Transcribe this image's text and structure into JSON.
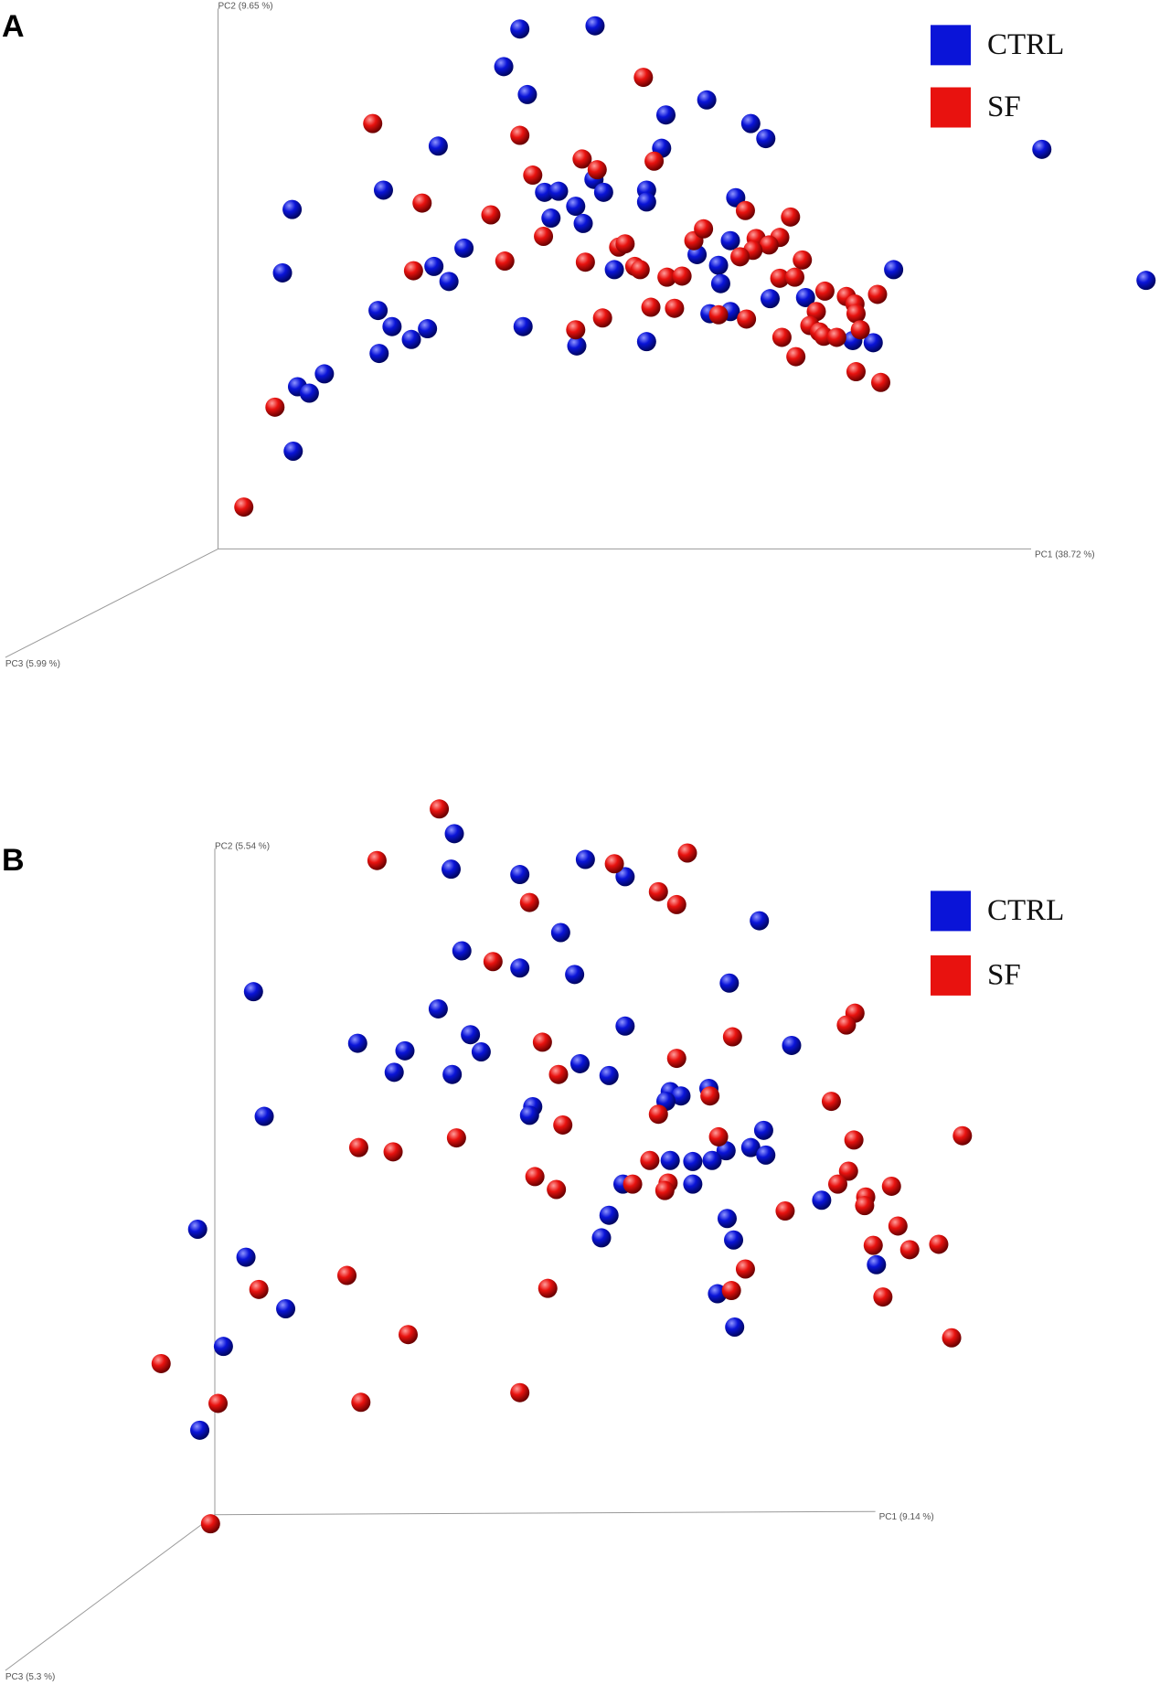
{
  "chart_data": [
    {
      "type": "scatter",
      "panel": "A",
      "x_label": "PC1 (38.72 %)",
      "y_label": "PC2 (9.65 %)",
      "z_label": "PC3 (5.99 %)",
      "xlim": [
        0,
        1080
      ],
      "ylim": [
        0,
        720
      ],
      "series": [
        {
          "name": "CTRL",
          "color": "#0a14d8",
          "x": [
            484,
            554,
            469,
            491,
            658,
            620,
            699,
            713,
            616,
            408,
            970,
            1067,
            272,
            357,
            507,
            520,
            553,
            562,
            536,
            513,
            543,
            602,
            602,
            685,
            680,
            669,
            671,
            649,
            572,
            432,
            404,
            418,
            263,
            352,
            365,
            383,
            398,
            353,
            302,
            277,
            288,
            273,
            487,
            537,
            602,
            661,
            680,
            717,
            750,
            832,
            794,
            813
          ],
          "y": [
            27,
            24,
            62,
            88,
            93,
            107,
            115,
            129,
            138,
            136,
            139,
            261,
            195,
            177,
            179,
            178,
            167,
            179,
            192,
            203,
            208,
            177,
            188,
            184,
            224,
            247,
            264,
            237,
            251,
            231,
            248,
            262,
            254,
            289,
            304,
            316,
            306,
            329,
            348,
            360,
            366,
            420,
            304,
            322,
            318,
            292,
            290,
            278,
            277,
            251,
            317,
            319
          ]
        },
        {
          "name": "SF",
          "color": "#e8120f",
          "x": [
            599,
            347,
            484,
            609,
            542,
            556,
            496,
            393,
            457,
            506,
            470,
            385,
            545,
            576,
            582,
            591,
            596,
            621,
            635,
            646,
            655,
            694,
            736,
            726,
            704,
            716,
            701,
            689,
            747,
            726,
            740,
            768,
            788,
            796,
            817,
            760,
            797,
            606,
            628,
            561,
            536,
            669,
            695,
            754,
            763,
            767,
            779,
            801,
            728,
            741,
            797,
            820,
            256,
            227
          ],
          "y": [
            72,
            115,
            126,
            150,
            148,
            158,
            163,
            189,
            200,
            220,
            243,
            252,
            244,
            230,
            227,
            248,
            251,
            258,
            257,
            224,
            213,
            196,
            202,
            221,
            222,
            228,
            233,
            239,
            242,
            259,
            258,
            271,
            276,
            283,
            274,
            290,
            292,
            286,
            287,
            296,
            307,
            293,
            297,
            303,
            309,
            313,
            314,
            307,
            314,
            332,
            346,
            356,
            379,
            472
          ]
        }
      ]
    },
    {
      "type": "scatter",
      "panel": "B",
      "x_label": "PC1 (9.14 %)",
      "y_label": "PC2 (5.54 %)",
      "z_label": "PC3 (5.3 %)",
      "xlim": [
        0,
        1080
      ],
      "ylim": [
        720,
        1568
      ],
      "series": [
        {
          "name": "CTRL",
          "color": "#0a14d8",
          "x": [
            423,
            420,
            484,
            545,
            582,
            707,
            522,
            430,
            484,
            535,
            679,
            236,
            408,
            333,
            377,
            448,
            438,
            367,
            421,
            540,
            567,
            582,
            737,
            246,
            496,
            493,
            624,
            634,
            660,
            620,
            711,
            676,
            699,
            713,
            645,
            663,
            624,
            645,
            580,
            567,
            560,
            677,
            683,
            765,
            816,
            184,
            229,
            266,
            208,
            186,
            668,
            684
          ],
          "y": [
            776,
            809,
            814,
            800,
            816,
            857,
            868,
            885,
            901,
            907,
            915,
            923,
            939,
            971,
            978,
            979,
            963,
            998,
            1000,
            990,
            1001,
            955,
            973,
            1039,
            1030,
            1038,
            1016,
            1020,
            1013,
            1025,
            1052,
            1071,
            1068,
            1075,
            1081,
            1080,
            1080,
            1102,
            1102,
            1131,
            1152,
            1134,
            1154,
            1117,
            1177,
            1144,
            1170,
            1218,
            1253,
            1331,
            1204,
            1235
          ]
        },
        {
          "name": "SF",
          "color": "#e8120f",
          "x": [
            409,
            351,
            572,
            640,
            493,
            613,
            630,
            459,
            796,
            788,
            505,
            682,
            630,
            520,
            661,
            613,
            524,
            774,
            334,
            366,
            425,
            795,
            896,
            669,
            605,
            498,
            518,
            589,
            622,
            619,
            790,
            780,
            806,
            805,
            830,
            731,
            836,
            813,
            847,
            874,
            241,
            323,
            510,
            681,
            694,
            822,
            380,
            886,
            150,
            203,
            336,
            484,
            196
          ],
          "y": [
            753,
            801,
            804,
            794,
            840,
            830,
            842,
            895,
            943,
            954,
            970,
            965,
            985,
            1000,
            1020,
            1037,
            1047,
            1025,
            1068,
            1072,
            1059,
            1061,
            1057,
            1058,
            1080,
            1095,
            1107,
            1102,
            1101,
            1108,
            1090,
            1102,
            1114,
            1122,
            1104,
            1127,
            1141,
            1159,
            1163,
            1158,
            1200,
            1187,
            1199,
            1201,
            1181,
            1207,
            1242,
            1245,
            1269,
            1306,
            1305,
            1296,
            1418
          ]
        }
      ]
    }
  ]
}
